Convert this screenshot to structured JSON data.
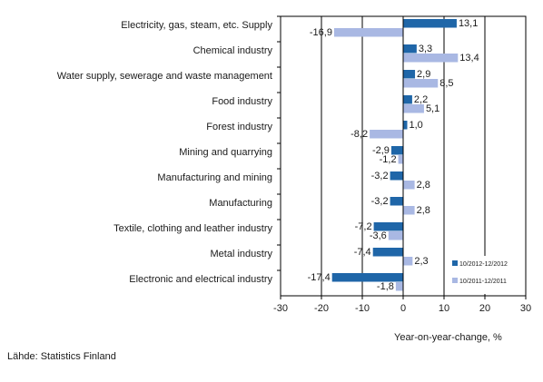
{
  "chart_data": {
    "type": "bar",
    "orientation": "horizontal",
    "categories": [
      "Electricity, gas, steam, etc. Supply",
      "Chemical industry",
      "Water supply, sewerage and waste management",
      "Food industry",
      "Forest industry",
      "Mining and quarrying",
      "Manufacturing and mining",
      "Manufacturing",
      "Textile, clothing and leather industry",
      "Metal industry",
      "Electronic and electrical industry"
    ],
    "series": [
      {
        "name": "10/2012-12/2012",
        "color": "#1f66a8",
        "values": [
          13.1,
          3.3,
          2.9,
          2.2,
          1.0,
          -2.9,
          -3.2,
          -3.2,
          -7.2,
          -7.4,
          -17.4
        ],
        "labels": [
          "13,1",
          "3,3",
          "2,9",
          "2,2",
          "1,0",
          "-2,9",
          "-3,2",
          "-3,2",
          "-7,2",
          "-7,4",
          "-17,4"
        ]
      },
      {
        "name": "10/2011-12/2011",
        "color": "#a9b8e3",
        "values": [
          -16.9,
          13.4,
          8.5,
          5.1,
          -8.2,
          -1.2,
          2.8,
          2.8,
          -3.6,
          2.3,
          -1.8
        ],
        "labels": [
          "-16,9",
          "13,4",
          "8,5",
          "5,1",
          "-8,2",
          "-1,2",
          "2,8",
          "2,8",
          "-3,6",
          "2,3",
          "-1,8"
        ]
      }
    ],
    "xlim": [
      -30,
      30
    ],
    "xticks": [
      "-30",
      "-20",
      "-10",
      "0",
      "10",
      "20",
      "30"
    ],
    "xlabel": "Year-on-year-change, %",
    "grid": true,
    "legend_position": "bottom-right"
  },
  "source": "Lähde: Statistics Finland"
}
